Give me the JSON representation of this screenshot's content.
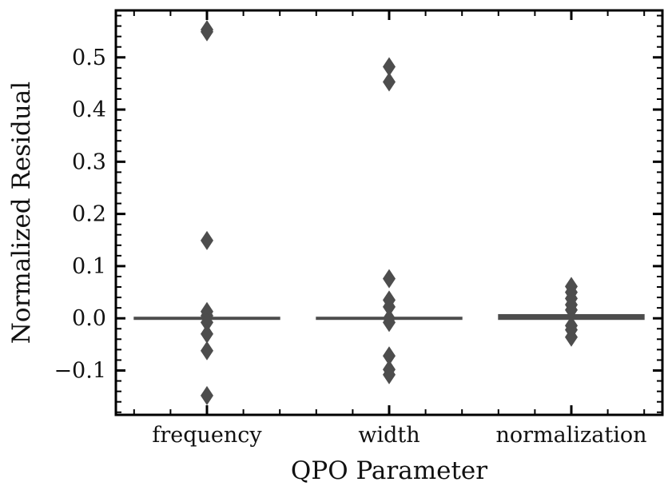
{
  "chart_data": {
    "type": "boxplot",
    "title": "",
    "xlabel": "QPO Parameter",
    "ylabel": "Normalized Residual",
    "ylim": [
      -0.185,
      0.59
    ],
    "yticks": [
      -0.1,
      0.0,
      0.1,
      0.2,
      0.3,
      0.4,
      0.5
    ],
    "ytick_labels": [
      "−0.1",
      "0.0",
      "0.1",
      "0.2",
      "0.3",
      "0.4",
      "0.5"
    ],
    "categories": [
      "frequency",
      "width",
      "normalization"
    ],
    "boxes": [
      {
        "category": "frequency",
        "median": 0.0,
        "q1": 0.0,
        "q3": 0.0
      },
      {
        "category": "width",
        "median": 0.0,
        "q1": 0.0,
        "q3": 0.0
      },
      {
        "category": "normalization",
        "median": 0.002,
        "q1": 0.0,
        "q3": 0.005
      }
    ],
    "outliers": [
      {
        "category": "frequency",
        "values": [
          0.553,
          0.549,
          0.149,
          0.013,
          0.005,
          -0.008,
          -0.03,
          -0.062,
          -0.148
        ]
      },
      {
        "category": "width",
        "values": [
          0.482,
          0.453,
          0.076,
          0.035,
          0.022,
          0.0,
          -0.008,
          -0.072,
          -0.098,
          -0.108
        ]
      },
      {
        "category": "normalization",
        "values": [
          0.061,
          0.05,
          0.038,
          0.026,
          0.016,
          -0.014,
          -0.022,
          -0.036
        ]
      }
    ],
    "colors": {
      "box": "#4d4d4d",
      "outlier": "#4d4d4d",
      "axis": "#000000"
    },
    "grid": false
  }
}
